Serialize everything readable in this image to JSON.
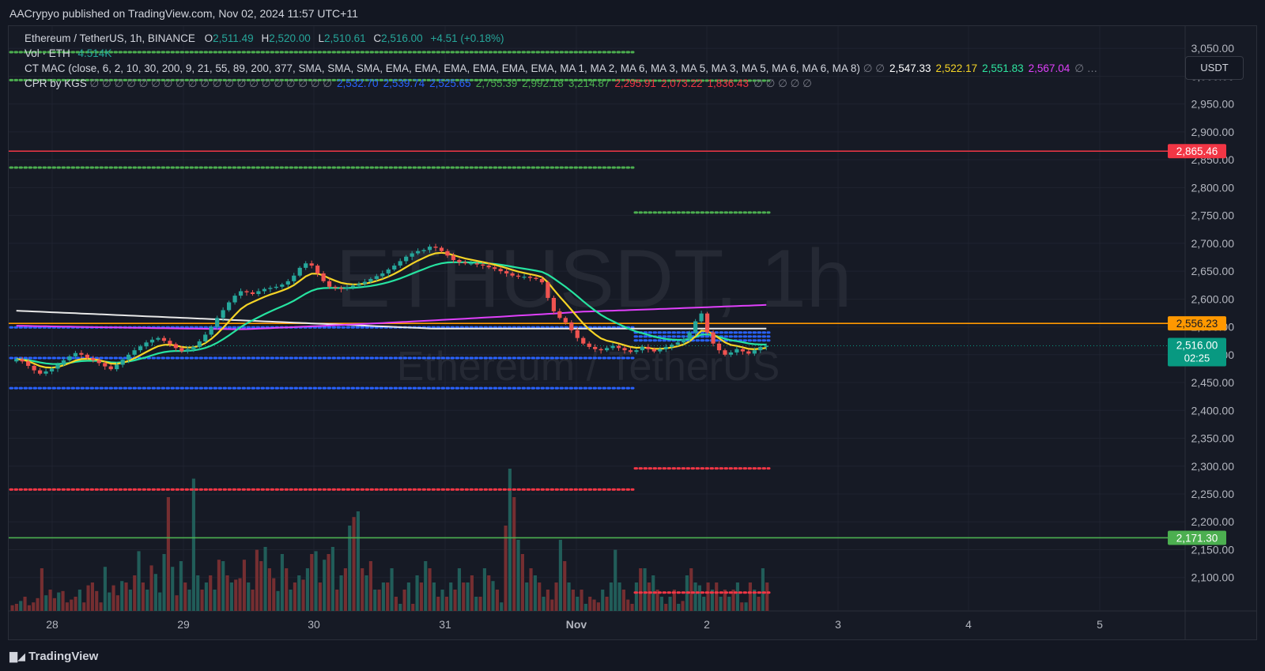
{
  "header": {
    "published": "AACrypyo published on TradingView.com, Nov 02, 2024 11:57 UTC+11"
  },
  "legend": {
    "symbol": "Ethereum / TetherUS, 1h, BINANCE",
    "o_label": "O",
    "o": "2,511.49",
    "h_label": "H",
    "h": "2,520.00",
    "l_label": "L",
    "l": "2,510.61",
    "c_label": "C",
    "c": "2,516.00",
    "change": "+4.51 (+0.18%)",
    "vol_label": "Vol · ETH",
    "vol_value": "4.514K",
    "ctmac_label": "CT MAC (close, 6, 2, 10, 30, 200, 9, 21, 55, 89, 200, 377, SMA, SMA, SMA, EMA, EMA, EMA, EMA, EMA, EMA, MA 1, MA 2, MA 6, MA 3, MA 5, MA 3, MA 5, MA 6, MA 6, MA 8)",
    "ctmac_values": [
      {
        "v": "2,547.33",
        "color": "#ffffff"
      },
      {
        "v": "2,522.17",
        "color": "#f5d426"
      },
      {
        "v": "2,551.83",
        "color": "#2ee6a0"
      },
      {
        "v": "2,567.04",
        "color": "#e040fb"
      }
    ],
    "cpr_label": "CPR by KGS",
    "cpr_values": [
      {
        "v": "2,532.70",
        "color": "#2962ff"
      },
      {
        "v": "2,539.74",
        "color": "#2962ff"
      },
      {
        "v": "2,525.65",
        "color": "#2962ff"
      },
      {
        "v": "2,755.39",
        "color": "#4caf50"
      },
      {
        "v": "2,992.18",
        "color": "#4caf50"
      },
      {
        "v": "3,214.87",
        "color": "#4caf50"
      },
      {
        "v": "2,295.91",
        "color": "#f23645"
      },
      {
        "v": "2,073.22",
        "color": "#f23645"
      },
      {
        "v": "1,836.43",
        "color": "#f23645"
      }
    ],
    "null_symbol": "∅",
    "ellipsis": "…"
  },
  "currency_button": "USDT",
  "watermark": {
    "main": "ETHUSDT, 1h",
    "sub": "Ethereum / TetherUS"
  },
  "brand": "TradingView",
  "chart_data": {
    "type": "candlestick",
    "y_ticks": [
      3050,
      3000,
      2950,
      2900,
      2850,
      2800,
      2750,
      2700,
      2650,
      2600,
      2550,
      2500,
      2450,
      2400,
      2350,
      2300,
      2250,
      2200,
      2150,
      2100
    ],
    "ylim": [
      2040,
      3090
    ],
    "x_ticks": [
      "28",
      "29",
      "30",
      "31",
      "Nov",
      "2",
      "3",
      "4",
      "5"
    ],
    "price_tags": [
      {
        "label": "2,865.46",
        "value": 2865.46,
        "color": "#f23645"
      },
      {
        "label": "2,556.23",
        "value": 2556.23,
        "color": "#ff9800"
      },
      {
        "label": "2,516.00",
        "value": 2516.0,
        "color": "#089981",
        "sub": "02:25"
      },
      {
        "label": "2,171.30",
        "value": 2171.3,
        "color": "#4caf50"
      }
    ],
    "horizontal_lines": [
      {
        "value": 2865.46,
        "color": "#f23645"
      },
      {
        "value": 2556.23,
        "color": "#ff9800"
      },
      {
        "value": 2171.3,
        "color": "#4caf50"
      }
    ],
    "cpr_levels_prev_day": [
      {
        "value": 2993,
        "color": "#4caf50"
      },
      {
        "value": 2836,
        "color": "#4caf50"
      },
      {
        "value": 2549,
        "color": "#2962ff"
      },
      {
        "value": 2494,
        "color": "#2962ff"
      },
      {
        "value": 2440,
        "color": "#2962ff"
      },
      {
        "value": 2258,
        "color": "#f23645"
      }
    ],
    "cpr_levels_current_day": [
      {
        "value": 2992.18,
        "color": "#4caf50"
      },
      {
        "value": 2755.39,
        "color": "#4caf50"
      },
      {
        "value": 2539.74,
        "color": "#2962ff"
      },
      {
        "value": 2532.7,
        "color": "#2962ff"
      },
      {
        "value": 2525.65,
        "color": "#2962ff"
      },
      {
        "value": 2295.91,
        "color": "#f23645"
      }
    ],
    "close_series": [
      2492,
      2488,
      2480,
      2472,
      2466,
      2470,
      2475,
      2482,
      2490,
      2497,
      2503,
      2500,
      2494,
      2490,
      2485,
      2479,
      2474,
      2482,
      2491,
      2500,
      2508,
      2515,
      2522,
      2527,
      2530,
      2525,
      2519,
      2512,
      2506,
      2510,
      2514,
      2524,
      2536,
      2550,
      2566,
      2580,
      2594,
      2606,
      2614,
      2612,
      2609,
      2614,
      2618,
      2620,
      2622,
      2626,
      2632,
      2642,
      2656,
      2664,
      2660,
      2646,
      2632,
      2622,
      2620,
      2618,
      2621,
      2624,
      2627,
      2631,
      2636,
      2641,
      2646,
      2653,
      2660,
      2668,
      2676,
      2682,
      2686,
      2688,
      2694,
      2692,
      2686,
      2678,
      2670,
      2666,
      2664,
      2664,
      2662,
      2660,
      2657,
      2654,
      2650,
      2646,
      2642,
      2640,
      2640,
      2638,
      2636,
      2630,
      2602,
      2578,
      2566,
      2558,
      2544,
      2530,
      2520,
      2514,
      2510,
      2508,
      2512,
      2516,
      2512,
      2508,
      2505,
      2508,
      2514,
      2510,
      2506,
      2510,
      2514,
      2518,
      2522,
      2528,
      2540,
      2560,
      2574,
      2540,
      2520,
      2508,
      2500,
      2504,
      2510,
      2506,
      2502,
      2508,
      2514,
      2516
    ],
    "volume_series": [
      8,
      10,
      14,
      20,
      8,
      12,
      18,
      60,
      22,
      30,
      18,
      26,
      28,
      12,
      16,
      20,
      30,
      12,
      36,
      40,
      28,
      12,
      62,
      26,
      36,
      22,
      42,
      40,
      30,
      50,
      84,
      40,
      30,
      64,
      52,
      26,
      80,
      160,
      62,
      22,
      70,
      40,
      30,
      186,
      50,
      30,
      40,
      50,
      30,
      72,
      70,
      50,
      40,
      44,
      46,
      72,
      40,
      30,
      86,
      70,
      90,
      60,
      46,
      28,
      80,
      60,
      30,
      40,
      50,
      44,
      60,
      80,
      84,
      40,
      72,
      80,
      90,
      30,
      50,
      60,
      120,
      132,
      140,
      60,
      50,
      70,
      30,
      30,
      40,
      40,
      60,
      20,
      10,
      30,
      40,
      10,
      50,
      40,
      70,
      60,
      40,
      20,
      30,
      20,
      40,
      30,
      60,
      40,
      40,
      50,
      20,
      20,
      60,
      50,
      42,
      30,
      12,
      120,
      200,
      160,
      100,
      80,
      40,
      60,
      50,
      40,
      20,
      30,
      16,
      40,
      100,
      70,
      40,
      30,
      20,
      30,
      10,
      20,
      16,
      12,
      30,
      20,
      40,
      86,
      40,
      30,
      16,
      10,
      40,
      60,
      60,
      40,
      50,
      30,
      20,
      10,
      20,
      30,
      10,
      14,
      50,
      60,
      40,
      36,
      20,
      40,
      30,
      40,
      20,
      30,
      20,
      30,
      40,
      12,
      12,
      40,
      30,
      20,
      60,
      40
    ],
    "ma_white": {
      "from": 2579,
      "to": 2547
    },
    "ma_yellow_label": "MA",
    "ma_green_label": "MA",
    "ma_magenta_label": "MA"
  }
}
